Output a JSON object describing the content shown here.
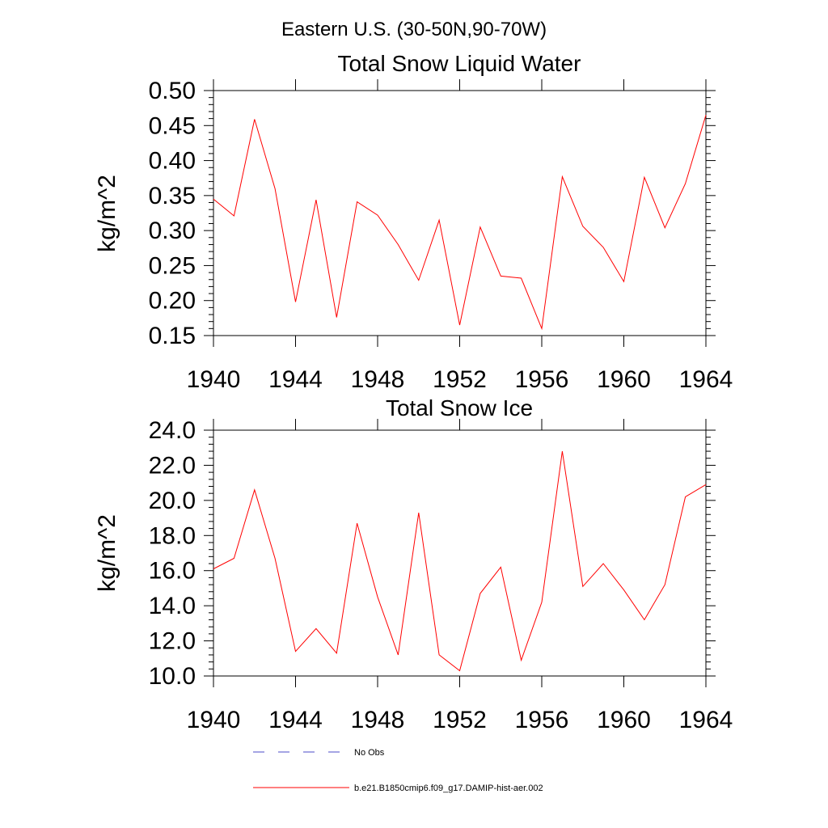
{
  "figure": {
    "suptitle": "Eastern U.S. (30-50N,90-70W)",
    "legend": [
      {
        "label": "No Obs",
        "color": "#4b4bc8",
        "style": "dashed"
      },
      {
        "label": "b.e21.B1850cmip6.f09_g17.DAMIP-hist-aer.002",
        "color": "#ff0000",
        "style": "solid"
      }
    ]
  },
  "chart_data": [
    {
      "type": "line",
      "title": "Total Snow Liquid Water",
      "ylabel": "kg/m^2",
      "xlabel": "",
      "xlim": [
        1940,
        1964
      ],
      "ylim": [
        0.15,
        0.5
      ],
      "xticks": [
        "1940",
        "1944",
        "1948",
        "1952",
        "1956",
        "1960",
        "1964"
      ],
      "yticks": [
        "0.15",
        "0.20",
        "0.25",
        "0.30",
        "0.35",
        "0.40",
        "0.45",
        "0.50"
      ],
      "grid": false,
      "series": [
        {
          "name": "b.e21.B1850cmip6.f09_g17.DAMIP-hist-aer.002",
          "color": "#ff0000",
          "x": [
            1940,
            1941,
            1942,
            1943,
            1944,
            1945,
            1946,
            1947,
            1948,
            1949,
            1950,
            1951,
            1952,
            1953,
            1954,
            1955,
            1956,
            1957,
            1958,
            1959,
            1960,
            1961,
            1962,
            1963,
            1964
          ],
          "y": [
            0.345,
            0.321,
            0.459,
            0.36,
            0.198,
            0.344,
            0.176,
            0.341,
            0.322,
            0.28,
            0.229,
            0.315,
            0.165,
            0.305,
            0.235,
            0.232,
            0.16,
            0.377,
            0.306,
            0.276,
            0.227,
            0.376,
            0.304,
            0.367,
            0.465
          ]
        }
      ]
    },
    {
      "type": "line",
      "title": "Total Snow Ice",
      "ylabel": "kg/m^2",
      "xlabel": "",
      "xlim": [
        1940,
        1964
      ],
      "ylim": [
        10.0,
        24.0
      ],
      "xticks": [
        "1940",
        "1944",
        "1948",
        "1952",
        "1956",
        "1960",
        "1964"
      ],
      "yticks": [
        "10.0",
        "12.0",
        "14.0",
        "16.0",
        "18.0",
        "20.0",
        "22.0",
        "24.0"
      ],
      "grid": false,
      "series": [
        {
          "name": "b.e21.B1850cmip6.f09_g17.DAMIP-hist-aer.002",
          "color": "#ff0000",
          "x": [
            1940,
            1941,
            1942,
            1943,
            1944,
            1945,
            1946,
            1947,
            1948,
            1949,
            1950,
            1951,
            1952,
            1953,
            1954,
            1955,
            1956,
            1957,
            1958,
            1959,
            1960,
            1961,
            1962,
            1963,
            1964
          ],
          "y": [
            16.1,
            16.7,
            20.6,
            16.7,
            11.4,
            12.7,
            11.3,
            18.7,
            14.5,
            11.2,
            19.3,
            11.2,
            10.3,
            14.7,
            16.2,
            10.9,
            14.2,
            22.8,
            15.1,
            16.4,
            14.9,
            13.2,
            15.2,
            20.2,
            20.9
          ]
        }
      ]
    }
  ]
}
